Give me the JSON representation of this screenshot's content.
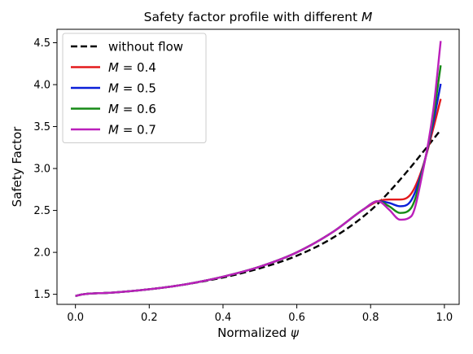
{
  "chart_data": {
    "type": "line",
    "title": "Safety factor profile with different M",
    "title_parts": {
      "prefix": "Safety factor profile with different ",
      "var": "M"
    },
    "xlabel": "Normalized ψ",
    "xlabel_parts": {
      "prefix": "Normalized ",
      "var": "ψ"
    },
    "ylabel": "Safety Factor",
    "xlim": [
      -0.05,
      1.04
    ],
    "ylim": [
      1.38,
      4.66
    ],
    "xticks": [
      0.0,
      0.2,
      0.4,
      0.6,
      0.8,
      1.0
    ],
    "xtick_labels": [
      "0.0",
      "0.2",
      "0.4",
      "0.6",
      "0.8",
      "1.0"
    ],
    "yticks": [
      1.5,
      2.0,
      2.5,
      3.0,
      3.5,
      4.0,
      4.5
    ],
    "ytick_labels": [
      "1.5",
      "2.0",
      "2.5",
      "3.0",
      "3.5",
      "4.0",
      "4.5"
    ],
    "grid": false,
    "legend_position": "top-left",
    "series": [
      {
        "name": "without flow",
        "legend_var": "",
        "legend_text": "without flow",
        "color": "#000000",
        "dash": true,
        "x": [
          0,
          0.02,
          0.1,
          0.2,
          0.3,
          0.4,
          0.5,
          0.6,
          0.7,
          0.8,
          0.85,
          0.9,
          0.95,
          0.99
        ],
        "y": [
          1.48,
          1.5,
          1.52,
          1.56,
          1.62,
          1.7,
          1.81,
          1.96,
          2.18,
          2.5,
          2.72,
          2.97,
          3.24,
          3.46
        ]
      },
      {
        "name": "M = 0.4",
        "legend_var": "M",
        "legend_text": " = 0.4",
        "color": "#e31a1c",
        "dash": false,
        "x": [
          0,
          0.02,
          0.1,
          0.2,
          0.3,
          0.4,
          0.5,
          0.6,
          0.7,
          0.78,
          0.82,
          0.85,
          0.88,
          0.91,
          0.94,
          0.97,
          0.99
        ],
        "y": [
          1.48,
          1.5,
          1.52,
          1.56,
          1.62,
          1.71,
          1.83,
          2.0,
          2.25,
          2.51,
          2.61,
          2.63,
          2.63,
          2.7,
          3.0,
          3.48,
          3.83
        ]
      },
      {
        "name": "M = 0.5",
        "legend_var": "M",
        "legend_text": " = 0.5",
        "color": "#0a1fd8",
        "dash": false,
        "x": [
          0,
          0.02,
          0.1,
          0.2,
          0.3,
          0.4,
          0.5,
          0.6,
          0.7,
          0.78,
          0.82,
          0.85,
          0.88,
          0.91,
          0.94,
          0.97,
          0.99
        ],
        "y": [
          1.48,
          1.5,
          1.52,
          1.56,
          1.62,
          1.71,
          1.83,
          2.0,
          2.25,
          2.51,
          2.61,
          2.59,
          2.55,
          2.62,
          2.98,
          3.55,
          4.01
        ]
      },
      {
        "name": "M = 0.6",
        "legend_var": "M",
        "legend_text": " = 0.6",
        "color": "#168a16",
        "dash": false,
        "x": [
          0,
          0.02,
          0.1,
          0.2,
          0.3,
          0.4,
          0.5,
          0.6,
          0.7,
          0.78,
          0.82,
          0.85,
          0.88,
          0.91,
          0.94,
          0.97,
          0.99
        ],
        "y": [
          1.48,
          1.5,
          1.52,
          1.56,
          1.62,
          1.71,
          1.83,
          2.0,
          2.25,
          2.51,
          2.61,
          2.55,
          2.47,
          2.53,
          2.96,
          3.62,
          4.23
        ]
      },
      {
        "name": "M = 0.7",
        "legend_var": "M",
        "legend_text": " = 0.7",
        "color": "#bb1fbb",
        "dash": false,
        "x": [
          0,
          0.02,
          0.1,
          0.2,
          0.3,
          0.4,
          0.5,
          0.6,
          0.7,
          0.78,
          0.82,
          0.85,
          0.88,
          0.91,
          0.94,
          0.97,
          0.99
        ],
        "y": [
          1.48,
          1.5,
          1.52,
          1.56,
          1.62,
          1.71,
          1.83,
          2.0,
          2.25,
          2.51,
          2.61,
          2.51,
          2.39,
          2.43,
          2.93,
          3.7,
          4.52
        ]
      }
    ]
  }
}
